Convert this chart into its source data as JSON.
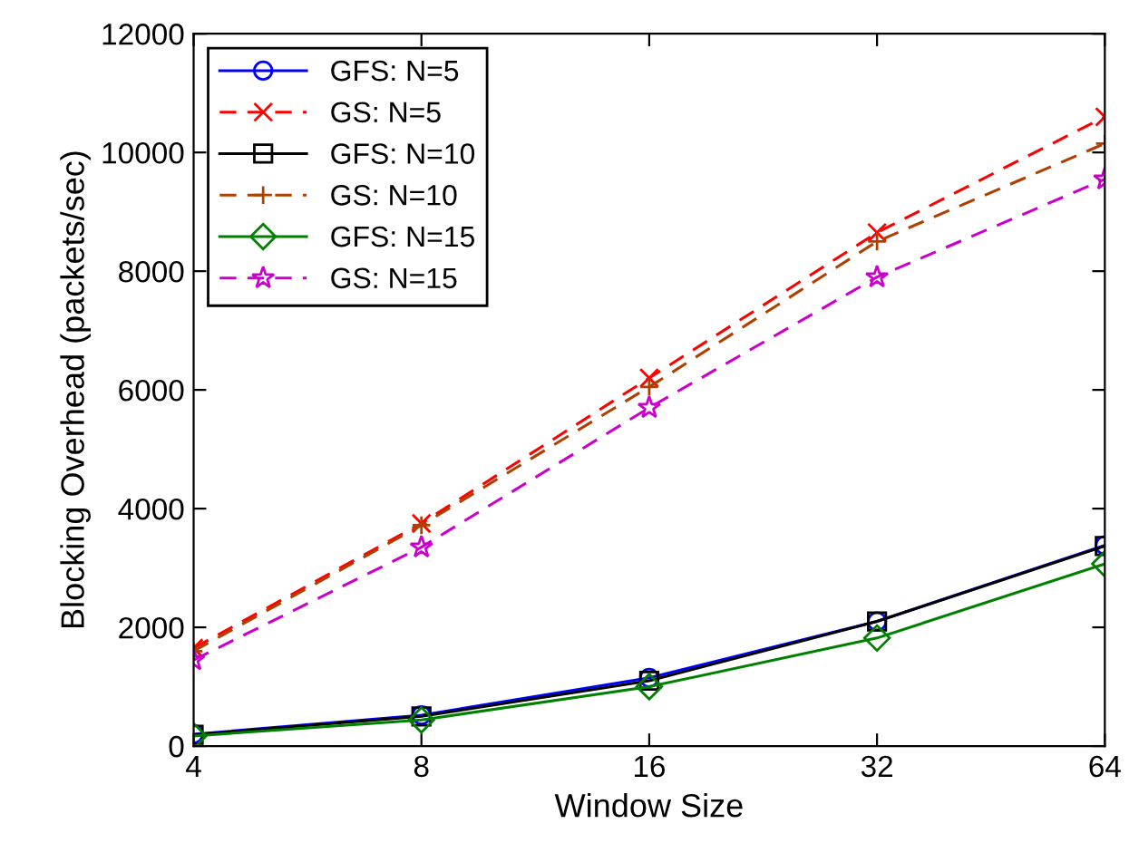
{
  "chart_data": {
    "type": "line",
    "xlabel": "Window Size",
    "ylabel": "Blocking Overhead (packets/sec)",
    "x": [
      4,
      8,
      16,
      32,
      64
    ],
    "log": "x",
    "xlim": [
      4,
      64
    ],
    "xticks": [
      4,
      8,
      16,
      32,
      64
    ],
    "ylim": [
      0,
      12000
    ],
    "yticks": [
      0,
      2000,
      4000,
      6000,
      8000,
      10000,
      12000
    ],
    "grid": false,
    "legend": "top left",
    "series": [
      {
        "name": "GFS: N=5",
        "color": "#0000ff",
        "marker": "circle",
        "line_style": "solid",
        "values": [
          200,
          520,
          1150,
          2100,
          3380
        ]
      },
      {
        "name": "GS: N=5",
        "color": "#ff0000",
        "marker": "cross",
        "line_style": "dashed",
        "values": [
          1650,
          3750,
          6200,
          8650,
          10600
        ]
      },
      {
        "name": "GFS: N=10",
        "color": "#000000",
        "marker": "square",
        "line_style": "solid",
        "values": [
          190,
          500,
          1100,
          2100,
          3370
        ]
      },
      {
        "name": "GS: N=10",
        "color": "#b04000",
        "marker": "plus",
        "line_style": "dashed",
        "values": [
          1600,
          3720,
          6050,
          8500,
          10150
        ]
      },
      {
        "name": "GFS: N=15",
        "color": "#008000",
        "marker": "diamond",
        "line_style": "solid",
        "values": [
          170,
          440,
          1000,
          1820,
          3070
        ]
      },
      {
        "name": "GS: N=15",
        "color": "#cc00cc",
        "marker": "star",
        "line_style": "dashed",
        "values": [
          1450,
          3350,
          5700,
          7900,
          9550
        ]
      }
    ]
  }
}
